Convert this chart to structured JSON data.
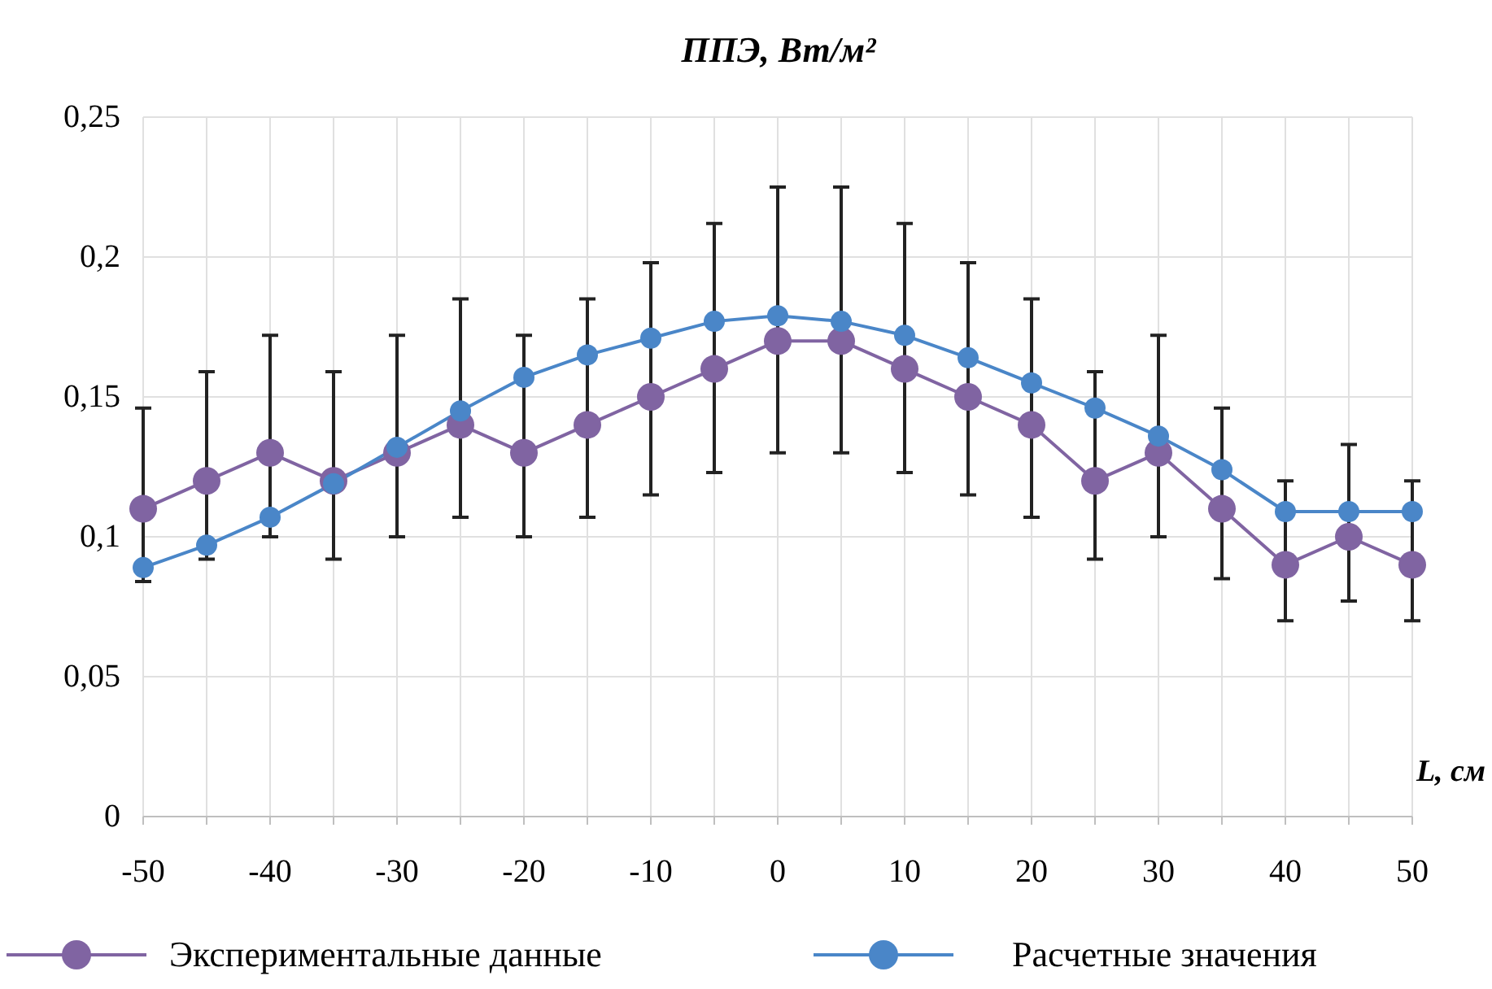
{
  "chart_data": {
    "type": "line",
    "title": "ППЭ, Вт/м²",
    "xlabel": "L, см",
    "x": [
      -50,
      -45,
      -40,
      -35,
      -30,
      -25,
      -20,
      -15,
      -10,
      -5,
      0,
      5,
      10,
      15,
      20,
      25,
      30,
      35,
      40,
      45,
      50
    ],
    "series": [
      {
        "name": "Экспериментальные данные",
        "color": "#8064a2",
        "values": [
          0.11,
          0.12,
          0.13,
          0.12,
          0.13,
          0.14,
          0.13,
          0.14,
          0.15,
          0.16,
          0.17,
          0.17,
          0.16,
          0.15,
          0.14,
          0.12,
          0.13,
          0.11,
          0.09,
          0.1,
          0.09
        ],
        "errors": [
          [
            0.084,
            0.146
          ],
          [
            0.092,
            0.159
          ],
          [
            0.1,
            0.172
          ],
          [
            0.092,
            0.159
          ],
          [
            0.1,
            0.172
          ],
          [
            0.107,
            0.185
          ],
          [
            0.1,
            0.172
          ],
          [
            0.107,
            0.185
          ],
          [
            0.115,
            0.198
          ],
          [
            0.123,
            0.212
          ],
          [
            0.13,
            0.225
          ],
          [
            0.13,
            0.225
          ],
          [
            0.123,
            0.212
          ],
          [
            0.115,
            0.198
          ],
          [
            0.107,
            0.185
          ],
          [
            0.092,
            0.159
          ],
          [
            0.1,
            0.172
          ],
          [
            0.085,
            0.146
          ],
          [
            0.07,
            0.12
          ],
          [
            0.077,
            0.133
          ],
          [
            0.07,
            0.12
          ]
        ]
      },
      {
        "name": "Расчетные значения",
        "color": "#4a86c8",
        "values": [
          0.089,
          0.097,
          0.107,
          0.119,
          0.132,
          0.145,
          0.157,
          0.165,
          0.171,
          0.177,
          0.179,
          0.177,
          0.172,
          0.164,
          0.155,
          0.146,
          0.136,
          0.124,
          0.109,
          0.109,
          0.109
        ]
      }
    ],
    "xlim": [
      -50,
      50
    ],
    "xticks": [
      -50,
      {
        "value": -45,
        "label": null
      },
      -40,
      {
        "value": -35,
        "label": null
      },
      -30,
      {
        "value": -25,
        "label": null
      },
      -20,
      {
        "value": -15,
        "label": null
      },
      -10,
      {
        "value": -5,
        "label": null
      },
      0,
      {
        "value": 5,
        "label": null
      },
      10,
      {
        "value": 15,
        "label": null
      },
      20,
      {
        "value": 25,
        "label": null
      },
      30,
      {
        "value": 35,
        "label": null
      },
      40,
      {
        "value": 45,
        "label": null
      },
      50
    ],
    "ylim": [
      0,
      0.25
    ],
    "yticks": [
      {
        "value": 0,
        "label": "0"
      },
      {
        "value": 0.05,
        "label": "0,05"
      },
      {
        "value": 0.1,
        "label": "0,1"
      },
      {
        "value": 0.15,
        "label": "0,15"
      },
      {
        "value": 0.2,
        "label": "0,2"
      },
      {
        "value": 0.25,
        "label": "0,25"
      }
    ],
    "grid": true,
    "legend": "bottom",
    "marker": "circle",
    "line_style": "solid"
  }
}
